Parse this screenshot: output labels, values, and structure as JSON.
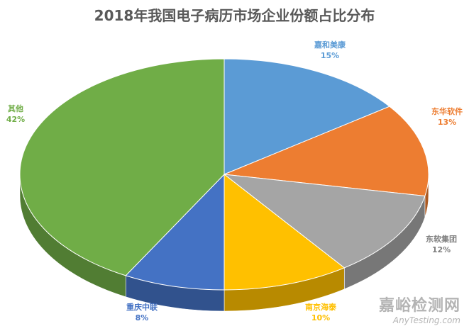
{
  "chart_data": {
    "type": "pie",
    "title": "2018年我国电子病历市场企业份额占比分布",
    "slices": [
      {
        "label": "嘉和美康",
        "value": 15,
        "pct_text": "15%",
        "color": "#5B9BD5"
      },
      {
        "label": "东华软件",
        "value": 13,
        "pct_text": "13%",
        "color": "#ED7D31"
      },
      {
        "label": "东软集团",
        "value": 12,
        "pct_text": "12%",
        "color": "#A5A5A5"
      },
      {
        "label": "南京海泰",
        "value": 10,
        "pct_text": "10%",
        "color": "#FFC000"
      },
      {
        "label": "重庆中联",
        "value": 8,
        "pct_text": "8%",
        "color": "#4472C4"
      },
      {
        "label": "其他",
        "value": 42,
        "pct_text": "42%",
        "color": "#70AD47"
      }
    ],
    "style": "3d",
    "legend": "none",
    "data_labels": "outside"
  },
  "watermark": {
    "cn": "嘉峪检测网",
    "en": "AnyTesting.com"
  }
}
